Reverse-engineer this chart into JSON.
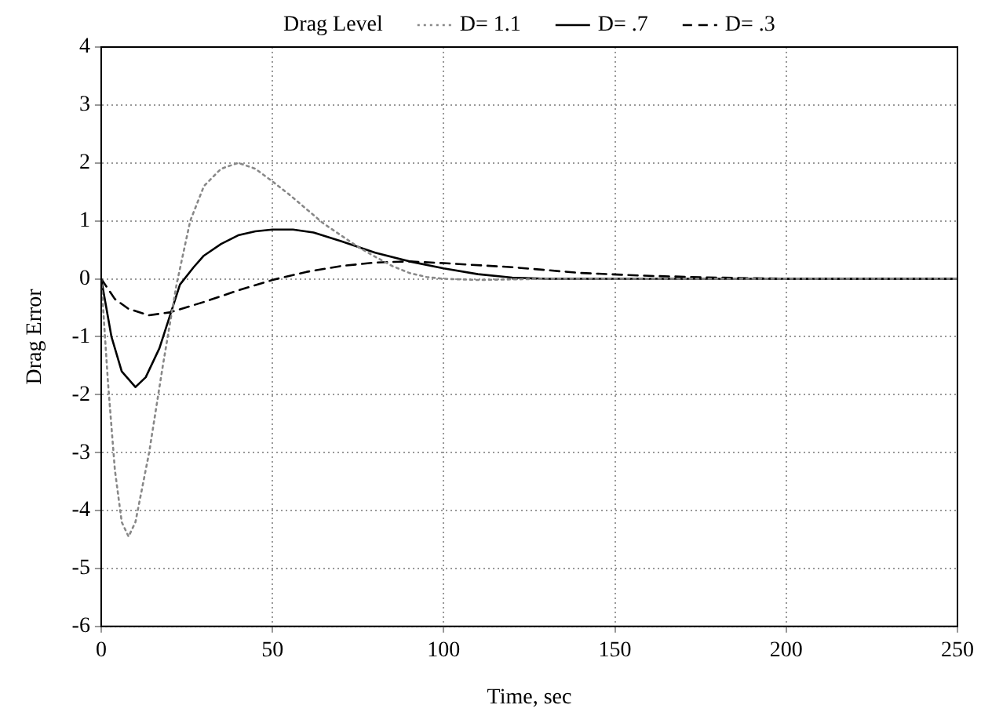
{
  "chart_data": {
    "type": "line",
    "xlabel": "Time, sec",
    "ylabel": "Drag Error",
    "legend_title": "Drag Level",
    "legend": "top",
    "xlim": [
      0,
      250
    ],
    "xticks": [
      0,
      50,
      100,
      150,
      200,
      250
    ],
    "ylim": [
      -6,
      4
    ],
    "yticks": [
      -6,
      -5,
      -4,
      -3,
      -2,
      -1,
      0,
      1,
      2,
      3,
      4
    ],
    "grid": true,
    "marker": "none",
    "series": [
      {
        "name": "D= 1.1",
        "color": "#888888",
        "line_style": "dotted",
        "x": [
          0,
          2,
          4,
          6,
          8,
          10,
          14,
          18,
          22,
          26,
          30,
          35,
          40,
          45,
          50,
          55,
          60,
          65,
          70,
          75,
          80,
          85,
          90,
          95,
          100,
          110,
          130,
          250
        ],
        "values": [
          0,
          -1.8,
          -3.3,
          -4.2,
          -4.45,
          -4.2,
          -3,
          -1.5,
          -0.1,
          1.0,
          1.6,
          1.9,
          2.0,
          1.9,
          1.68,
          1.45,
          1.2,
          0.95,
          0.75,
          0.55,
          0.38,
          0.22,
          0.1,
          0.03,
          0,
          -0.02,
          0,
          0
        ]
      },
      {
        "name": "D= .7",
        "color": "#000000",
        "line_style": "solid",
        "x": [
          0,
          3,
          6,
          10,
          13,
          17,
          20,
          23,
          27,
          30,
          35,
          40,
          45,
          50,
          56,
          62,
          70,
          80,
          90,
          100,
          110,
          120,
          130,
          250
        ],
        "values": [
          0,
          -1.0,
          -1.6,
          -1.87,
          -1.7,
          -1.2,
          -0.65,
          -0.1,
          0.2,
          0.4,
          0.6,
          0.75,
          0.82,
          0.85,
          0.85,
          0.8,
          0.65,
          0.45,
          0.3,
          0.18,
          0.08,
          0.02,
          0,
          0
        ]
      },
      {
        "name": "D= .3",
        "color": "#000000",
        "line_style": "dashed",
        "x": [
          0,
          4,
          8,
          14,
          20,
          30,
          40,
          50,
          60,
          70,
          80,
          90,
          100,
          120,
          140,
          160,
          180,
          200,
          250
        ],
        "values": [
          0,
          -0.35,
          -0.52,
          -0.63,
          -0.58,
          -0.4,
          -0.2,
          -0.02,
          0.12,
          0.22,
          0.28,
          0.3,
          0.27,
          0.2,
          0.1,
          0.05,
          0.02,
          0,
          0
        ]
      }
    ]
  }
}
